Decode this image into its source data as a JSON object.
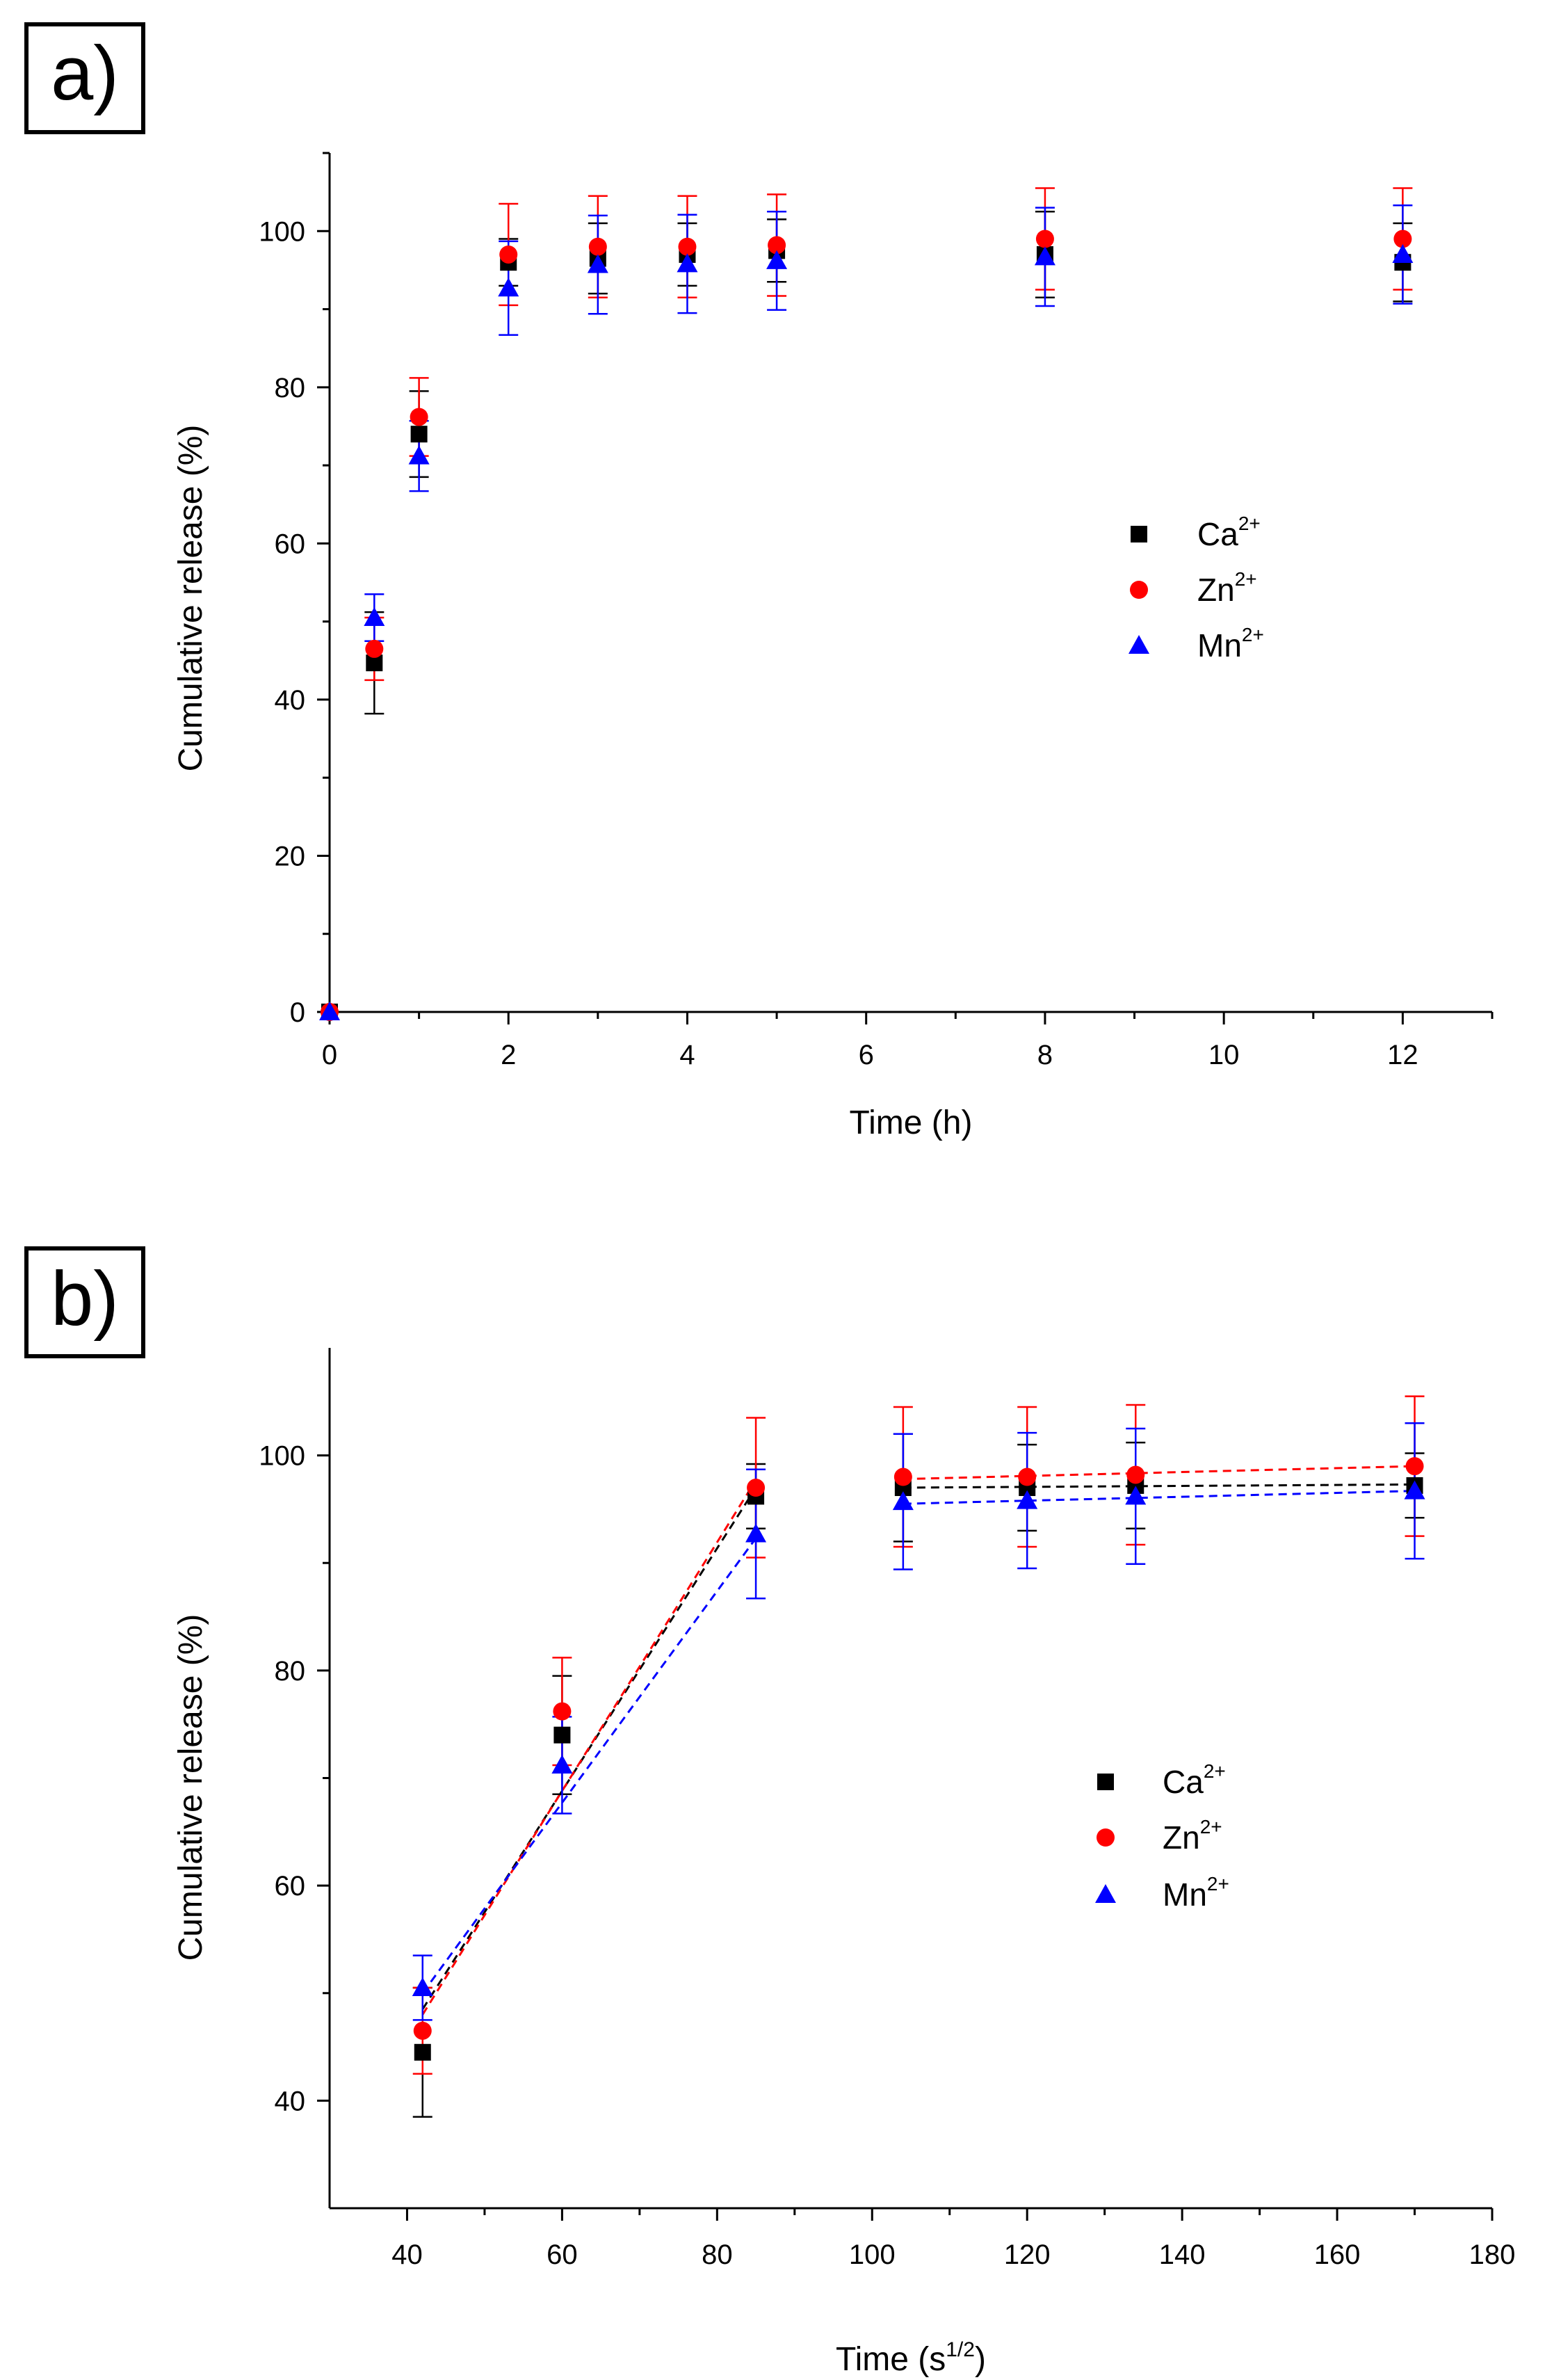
{
  "chart_data": [
    {
      "panel_label": "a)",
      "type": "scatter",
      "xlabel": "Time (h)",
      "ylabel": "Cumulative release (%)",
      "xlim": [
        0,
        13
      ],
      "ylim": [
        0,
        110
      ],
      "xticks": [
        0,
        2,
        4,
        6,
        8,
        10,
        12
      ],
      "yticks": [
        0,
        20,
        40,
        60,
        80,
        100
      ],
      "grid": false,
      "legend_position": "right",
      "series": [
        {
          "name": "Ca",
          "sup": "2+",
          "color": "#000000",
          "marker": "square",
          "x": [
            0,
            0.5,
            1,
            2,
            3,
            4,
            5,
            8,
            12
          ],
          "y": [
            0,
            44.7,
            74.0,
            96.0,
            96.5,
            97.0,
            97.5,
            97.0,
            96.0
          ],
          "err": [
            0,
            6.5,
            5.5,
            3.0,
            4.5,
            4.0,
            4.0,
            5.5,
            5.0
          ]
        },
        {
          "name": "Zn",
          "sup": "2+",
          "color": "#ff0000",
          "marker": "circle",
          "x": [
            0,
            0.5,
            1,
            2,
            3,
            4,
            5,
            8,
            12
          ],
          "y": [
            0,
            46.5,
            76.2,
            97.0,
            98.0,
            98.0,
            98.2,
            99.0,
            99.0
          ],
          "err": [
            0,
            4.0,
            5.0,
            6.5,
            6.5,
            6.5,
            6.5,
            6.5,
            6.5
          ]
        },
        {
          "name": "Mn",
          "sup": "2+",
          "color": "#0000ff",
          "marker": "triangle",
          "x": [
            0,
            0.5,
            1,
            2,
            3,
            4,
            5,
            8,
            12
          ],
          "y": [
            0,
            50.5,
            71.2,
            92.7,
            95.7,
            95.8,
            96.2,
            96.7,
            97.0
          ],
          "err": [
            0,
            3.0,
            4.5,
            6.0,
            6.3,
            6.3,
            6.3,
            6.3,
            6.3
          ]
        }
      ]
    },
    {
      "panel_label": "b)",
      "type": "line",
      "xlabel": "Time (s",
      "xlabel_sup": "1/2",
      "xlabel_end": ")",
      "ylabel": "Cumulative release (%)",
      "xlim": [
        30,
        180
      ],
      "ylim": [
        30,
        110
      ],
      "xticks": [
        40,
        60,
        80,
        100,
        120,
        140,
        160,
        180
      ],
      "yticks": [
        40,
        60,
        80,
        100
      ],
      "grid": false,
      "legend_position": "right",
      "series": [
        {
          "name": "Ca",
          "sup": "2+",
          "color": "#000000",
          "marker": "square",
          "x": [
            42,
            60,
            85,
            104,
            120,
            134,
            170
          ],
          "y": [
            44.5,
            74.0,
            96.2,
            97.0,
            97.0,
            97.2,
            97.2
          ],
          "err": [
            6.0,
            5.5,
            3.0,
            5.0,
            4.0,
            4.0,
            3.0
          ],
          "fit": [
            [
              [
                42,
                48.5
              ],
              [
                85,
                97.0
              ]
            ],
            [
              [
                104,
                97.0
              ],
              [
                170,
                97.3
              ]
            ]
          ]
        },
        {
          "name": "Zn",
          "sup": "2+",
          "color": "#ff0000",
          "marker": "circle",
          "x": [
            42,
            60,
            85,
            104,
            120,
            134,
            170
          ],
          "y": [
            46.5,
            76.2,
            97.0,
            98.0,
            98.0,
            98.2,
            99.0
          ],
          "err": [
            4.0,
            5.0,
            6.5,
            6.5,
            6.5,
            6.5,
            6.5
          ],
          "fit": [
            [
              [
                42,
                48.0
              ],
              [
                85,
                97.7
              ]
            ],
            [
              [
                104,
                97.8
              ],
              [
                170,
                99.0
              ]
            ]
          ]
        },
        {
          "name": "Mn",
          "sup": "2+",
          "color": "#0000ff",
          "marker": "triangle",
          "x": [
            42,
            60,
            85,
            104,
            120,
            134,
            170
          ],
          "y": [
            50.5,
            71.2,
            92.7,
            95.7,
            95.8,
            96.2,
            96.7
          ],
          "err": [
            3.0,
            4.5,
            6.0,
            6.3,
            6.3,
            6.3,
            6.3
          ],
          "fit": [
            [
              [
                42,
                50.0
              ],
              [
                85,
                92.3
              ]
            ],
            [
              [
                104,
                95.5
              ],
              [
                170,
                96.7
              ]
            ]
          ]
        }
      ]
    }
  ]
}
